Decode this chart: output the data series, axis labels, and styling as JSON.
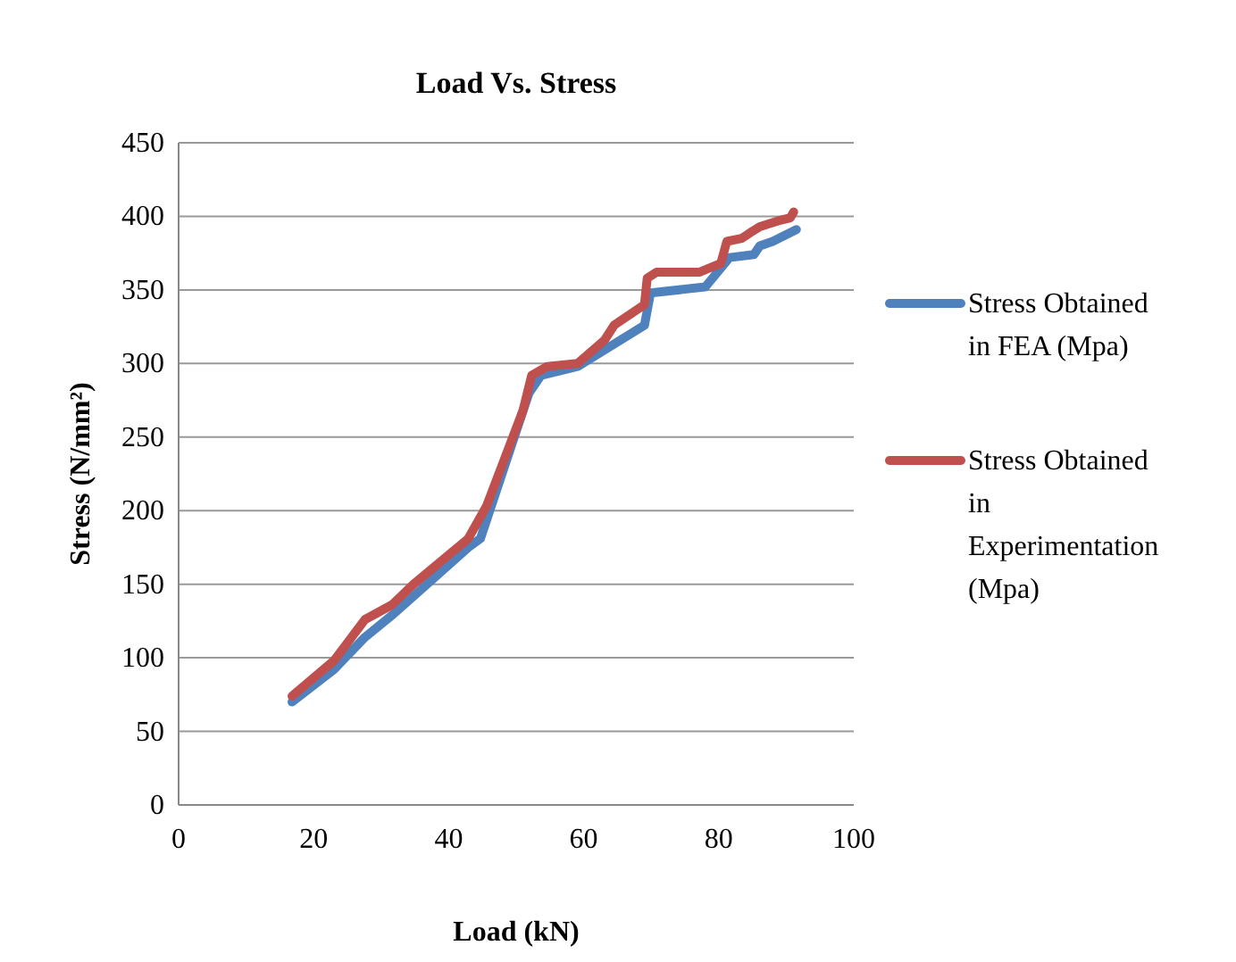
{
  "chart_data": {
    "type": "line",
    "title": "Load Vs. Stress",
    "xlabel": "Load (kN)",
    "ylabel": "Stress (N/mm²)",
    "xlim": [
      0,
      100
    ],
    "xticks": [
      0,
      20,
      40,
      60,
      80,
      100
    ],
    "ylim": [
      0,
      450
    ],
    "yticks": [
      0,
      50,
      100,
      150,
      200,
      250,
      300,
      350,
      400,
      450
    ],
    "grid": "y",
    "legend": "right",
    "marker": "none",
    "line_style": "solid",
    "series": [
      {
        "name": "Stress Obtained in FEA (Mpa)",
        "color": "#4f81bd",
        "x": [
          16.8,
          23,
          27.6,
          31.9,
          42.9,
          44.7,
          51.9,
          53.7,
          59.1,
          69,
          69.9,
          78,
          79.8,
          81.6,
          85.2,
          86.1,
          88,
          91.5
        ],
        "values": [
          70,
          92,
          114,
          130,
          175,
          181,
          280,
          292,
          298,
          326,
          348,
          352,
          362,
          372,
          374,
          380,
          383,
          391
        ]
      },
      {
        "name": "Stress Obtained in Experimentation (Mpa)",
        "color": "#c0504d",
        "x": [
          16.8,
          23,
          27.6,
          31.6,
          34.8,
          42.9,
          45.6,
          51,
          52.3,
          54.6,
          59.1,
          63.1,
          64.5,
          69,
          69.4,
          70.8,
          77.1,
          80.3,
          81.2,
          83.4,
          84.7,
          86.1,
          88.8,
          90.6,
          91.1
        ],
        "values": [
          74,
          98,
          126,
          136,
          150,
          181,
          203,
          268,
          292,
          298,
          300,
          316,
          326,
          340,
          358,
          362,
          362,
          368,
          383,
          385,
          389,
          393,
          397,
          399,
          403
        ]
      }
    ]
  }
}
